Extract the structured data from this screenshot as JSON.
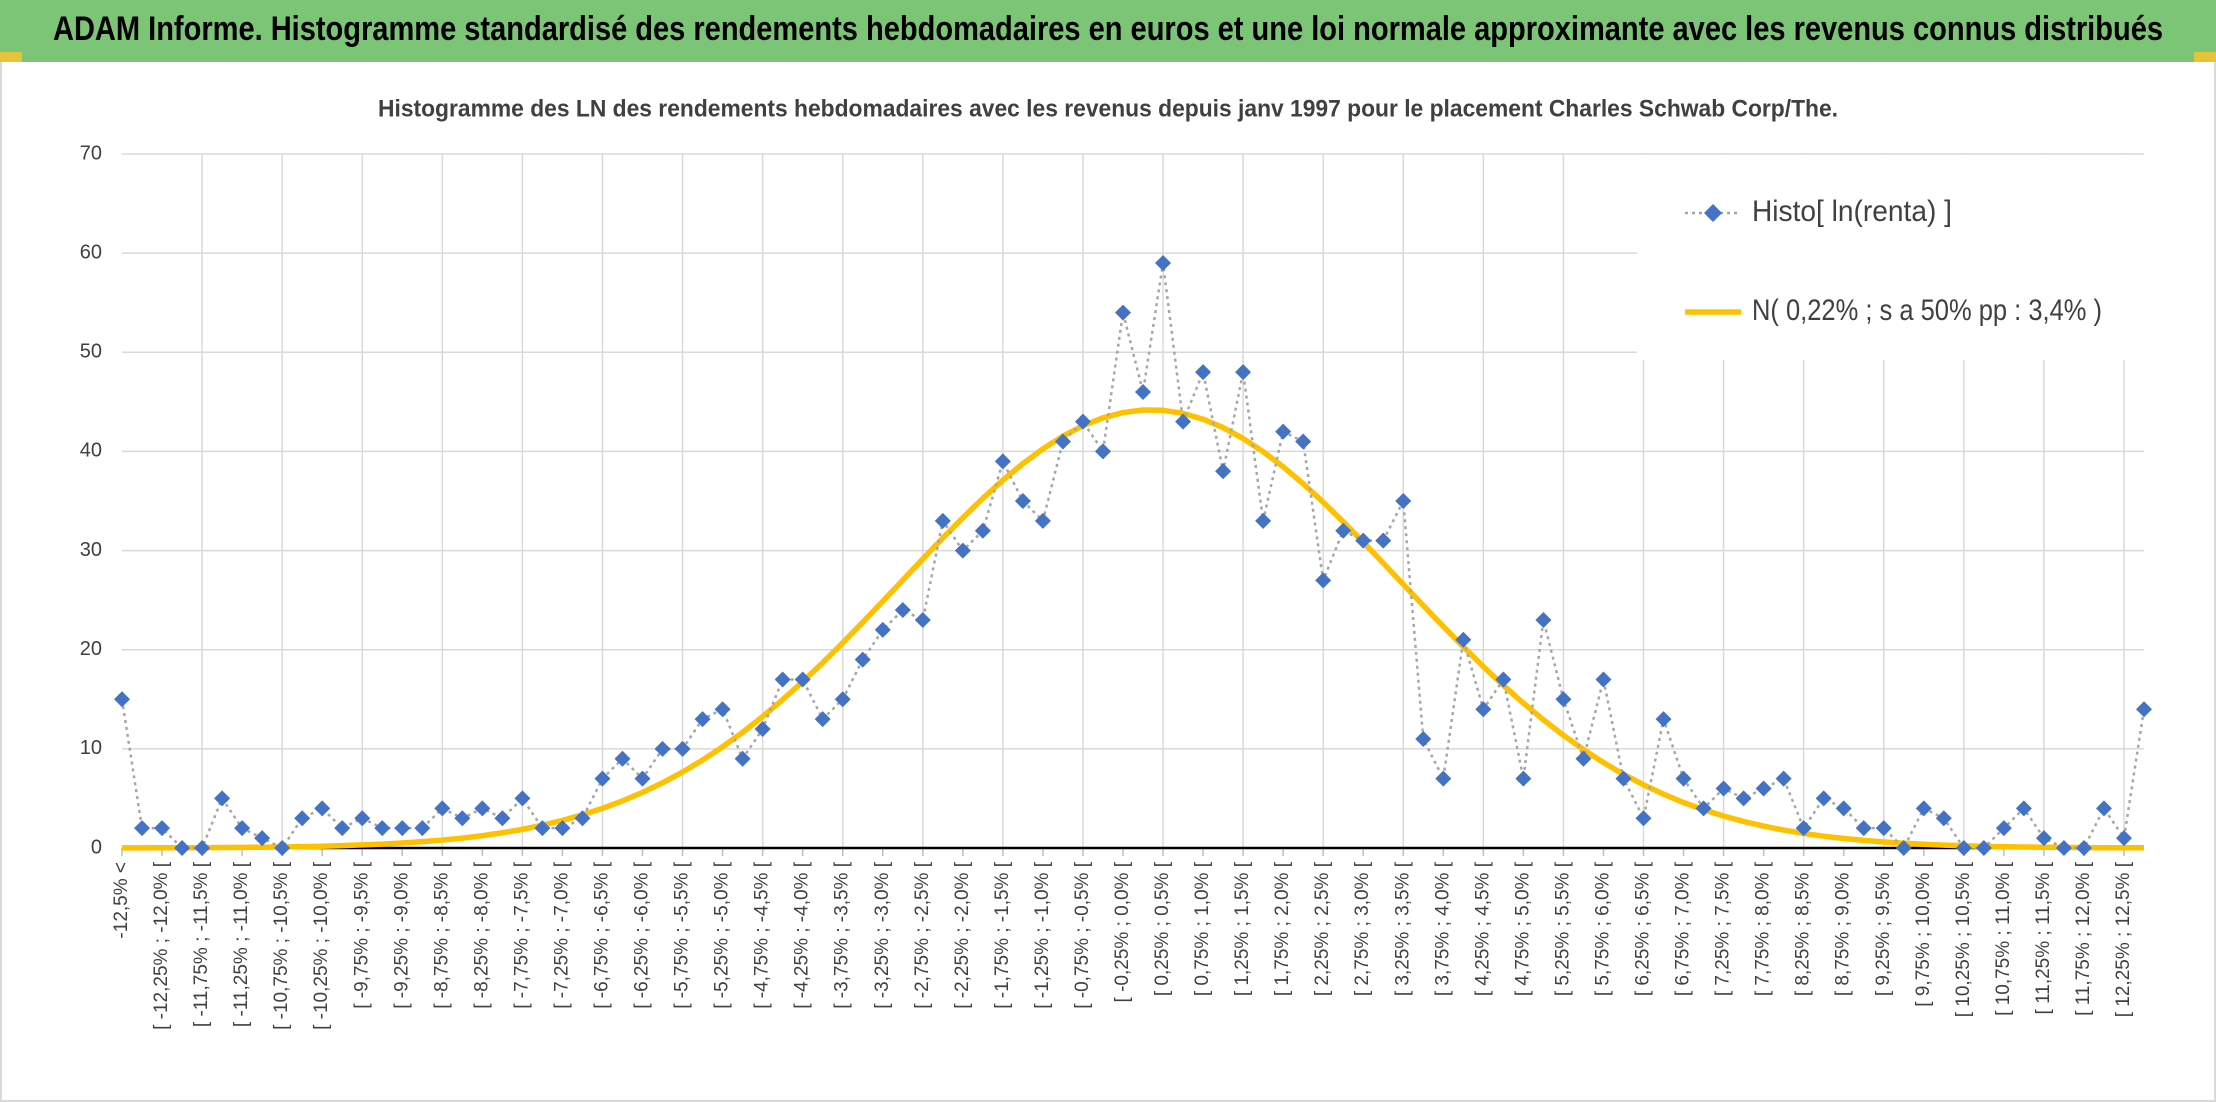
{
  "chart_data": {
    "type": "line",
    "title": "ADAM Informe. Histogramme standardisé des rendements hebdomadaires en euros et une loi normale approximante avec les revenus connus distribués",
    "subtitle": "Histogramme des LN des rendements hebdomadaires avec les revenus depuis janv 1997 pour le placement Charles Schwab Corp/The.",
    "categories": [
      "-12,5% <",
      null,
      "[ -12,25% ; -12,0% [",
      null,
      "[ -11,75% ; -11,5% [",
      null,
      "[ -11,25% ; -11,0% [",
      null,
      "[ -10,75% ; -10,5% [",
      null,
      "[ -10,25% ; -10,0% [",
      null,
      "[ -9,75% ; -9,5% [",
      null,
      "[ -9,25% ; -9,0% [",
      null,
      "[ -8,75% ; -8,5% [",
      null,
      "[ -8,25% ; -8,0% [",
      null,
      "[ -7,75% ; -7,5% [",
      null,
      "[ -7,25% ; -7,0% [",
      null,
      "[ -6,75% ; -6,5% [",
      null,
      "[ -6,25% ; -6,0% [",
      null,
      "[ -5,75% ; -5,5% [",
      null,
      "[ -5,25% ; -5,0% [",
      null,
      "[ -4,75% ; -4,5% [",
      null,
      "[ -4,25% ; -4,0% [",
      null,
      "[ -3,75% ; -3,5% [",
      null,
      "[ -3,25% ; -3,0% [",
      null,
      "[ -2,75% ; -2,5% [",
      null,
      "[ -2,25% ; -2,0% [",
      null,
      "[ -1,75% ; -1,5% [",
      null,
      "[ -1,25% ; -1,0% [",
      null,
      "[ -0,75% ; -0,5% [",
      null,
      "[ -0,25% ; 0,0% [",
      null,
      "[ 0,25% ; 0,5% [",
      null,
      "[ 0,75% ; 1,0% [",
      null,
      "[ 1,25% ; 1,5% [",
      null,
      "[ 1,75% ; 2,0% [",
      null,
      "[ 2,25% ; 2,5% [",
      null,
      "[ 2,75% ; 3,0% [",
      null,
      "[ 3,25% ; 3,5% [",
      null,
      "[ 3,75% ; 4,0% [",
      null,
      "[ 4,25% ; 4,5% [",
      null,
      "[ 4,75% ; 5,0% [",
      null,
      "[ 5,25% ; 5,5% [",
      null,
      "[ 5,75% ; 6,0% [",
      null,
      "[ 6,25% ; 6,5% [",
      null,
      "[ 6,75% ; 7,0% [",
      null,
      "[ 7,25% ; 7,5% [",
      null,
      "[ 7,75% ; 8,0% [",
      null,
      "[ 8,25% ; 8,5% [",
      null,
      "[ 8,75% ; 9,0% [",
      null,
      "[ 9,25% ; 9,5% [",
      null,
      "[ 9,75% ; 10,0% [",
      null,
      "[ 10,25% ; 10,5% [",
      null,
      "[ 10,75% ; 11,0% [",
      null,
      "[ 11,25% ; 11,5% [",
      null,
      "[ 11,75% ; 12,0% [",
      null,
      "[ 12,25% ; 12,5% [",
      null
    ],
    "series": [
      {
        "name": "Histo[ ln(renta) ]",
        "color": "#4472c4",
        "line_color": "#a6a6a6",
        "marker": "diamond",
        "values": [
          15,
          2,
          2,
          0,
          0,
          5,
          2,
          1,
          0,
          3,
          4,
          2,
          3,
          2,
          2,
          2,
          4,
          3,
          4,
          3,
          5,
          2,
          2,
          3,
          7,
          9,
          7,
          10,
          10,
          13,
          14,
          9,
          12,
          17,
          17,
          13,
          15,
          19,
          22,
          24,
          23,
          33,
          30,
          32,
          39,
          35,
          33,
          41,
          43,
          40,
          54,
          46,
          59,
          43,
          48,
          38,
          48,
          33,
          42,
          41,
          27,
          32,
          31,
          31,
          35,
          11,
          7,
          21,
          14,
          17,
          7,
          23,
          15,
          9,
          17,
          7,
          3,
          13,
          7,
          4,
          6,
          5,
          6,
          7,
          2,
          5,
          4,
          2,
          2,
          0,
          4,
          3,
          0,
          0,
          2,
          4,
          1,
          0,
          0,
          4,
          1,
          14
        ]
      },
      {
        "name": "N( 0,22% ; s a 50% pp : 3,4% )",
        "color": "#ffc000",
        "values": [
          0.01,
          0.01,
          0.02,
          0.02,
          0.03,
          0.05,
          0.06,
          0.08,
          0.11,
          0.14,
          0.18,
          0.24,
          0.31,
          0.39,
          0.5,
          0.64,
          0.8,
          1.0,
          1.24,
          1.54,
          1.88,
          2.3,
          2.78,
          3.35,
          4.0,
          4.75,
          5.61,
          6.58,
          7.66,
          8.87,
          10.21,
          11.67,
          13.26,
          14.96,
          16.78,
          18.69,
          20.7,
          22.76,
          24.88,
          27.02,
          29.16,
          31.27,
          33.31,
          35.27,
          37.1,
          38.77,
          40.26,
          41.54,
          42.6,
          43.39,
          43.92,
          44.18,
          44.15,
          43.84,
          43.25,
          42.41,
          41.3,
          39.98,
          38.45,
          36.74,
          34.88,
          32.91,
          30.85,
          28.73,
          26.59,
          24.46,
          22.35,
          20.29,
          18.3,
          16.4,
          14.61,
          12.93,
          11.37,
          9.93,
          8.62,
          7.43,
          6.37,
          5.43,
          4.59,
          3.86,
          3.23,
          2.68,
          2.21,
          1.81,
          1.47,
          1.19,
          0.96,
          0.77,
          0.61,
          0.48,
          0.38,
          0.29,
          0.23,
          0.17,
          0.13,
          0.1,
          0.08,
          0.06,
          0.04,
          0.03,
          0.02,
          0.02
        ]
      }
    ],
    "ylim": [
      0,
      70
    ],
    "yticks": [
      0,
      10,
      20,
      30,
      40,
      50,
      60,
      70
    ],
    "grid": true,
    "legend": "upper right"
  }
}
